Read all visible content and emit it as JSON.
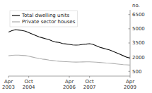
{
  "chart_data": {
    "type": "line",
    "y_label": "no.",
    "categories": [
      "Apr\n2003",
      null,
      null,
      null,
      null,
      null,
      "Oct\n2004",
      null,
      null,
      null,
      null,
      null,
      null,
      null,
      null,
      null,
      null,
      null,
      "Apr\n2006",
      null,
      null,
      null,
      null,
      null,
      "Oct\n2007",
      null,
      null,
      null,
      null,
      null,
      null,
      null,
      null,
      null,
      null,
      null,
      "Apr\n2009"
    ],
    "series": [
      {
        "name": "Total dwelling units",
        "color": "#111111",
        "values": [
          4650,
          4800,
          4900,
          4870,
          4820,
          4750,
          4600,
          4450,
          4300,
          4150,
          4050,
          3950,
          3850,
          3700,
          3600,
          3550,
          3450,
          3400,
          3350,
          3300,
          3280,
          3300,
          3350,
          3380,
          3420,
          3350,
          3200,
          3050,
          2950,
          2850,
          2750,
          2600,
          2450,
          2300,
          2150,
          2000,
          1900
        ]
      },
      {
        "name": "Private sector houses",
        "color": "#b0b0b0",
        "values": [
          2150,
          2200,
          2220,
          2210,
          2190,
          2170,
          2100,
          2020,
          1940,
          1860,
          1800,
          1760,
          1700,
          1650,
          1600,
          1570,
          1550,
          1530,
          1510,
          1490,
          1480,
          1490,
          1500,
          1510,
          1510,
          1490,
          1470,
          1440,
          1410,
          1380,
          1360,
          1330,
          1290,
          1250,
          1210,
          1190,
          1160
        ]
      }
    ],
    "ylim": [
      0,
      7000
    ],
    "yticks": [
      500,
      2000,
      3500,
      5000,
      6500
    ],
    "grid": false,
    "legend": "upper left"
  }
}
